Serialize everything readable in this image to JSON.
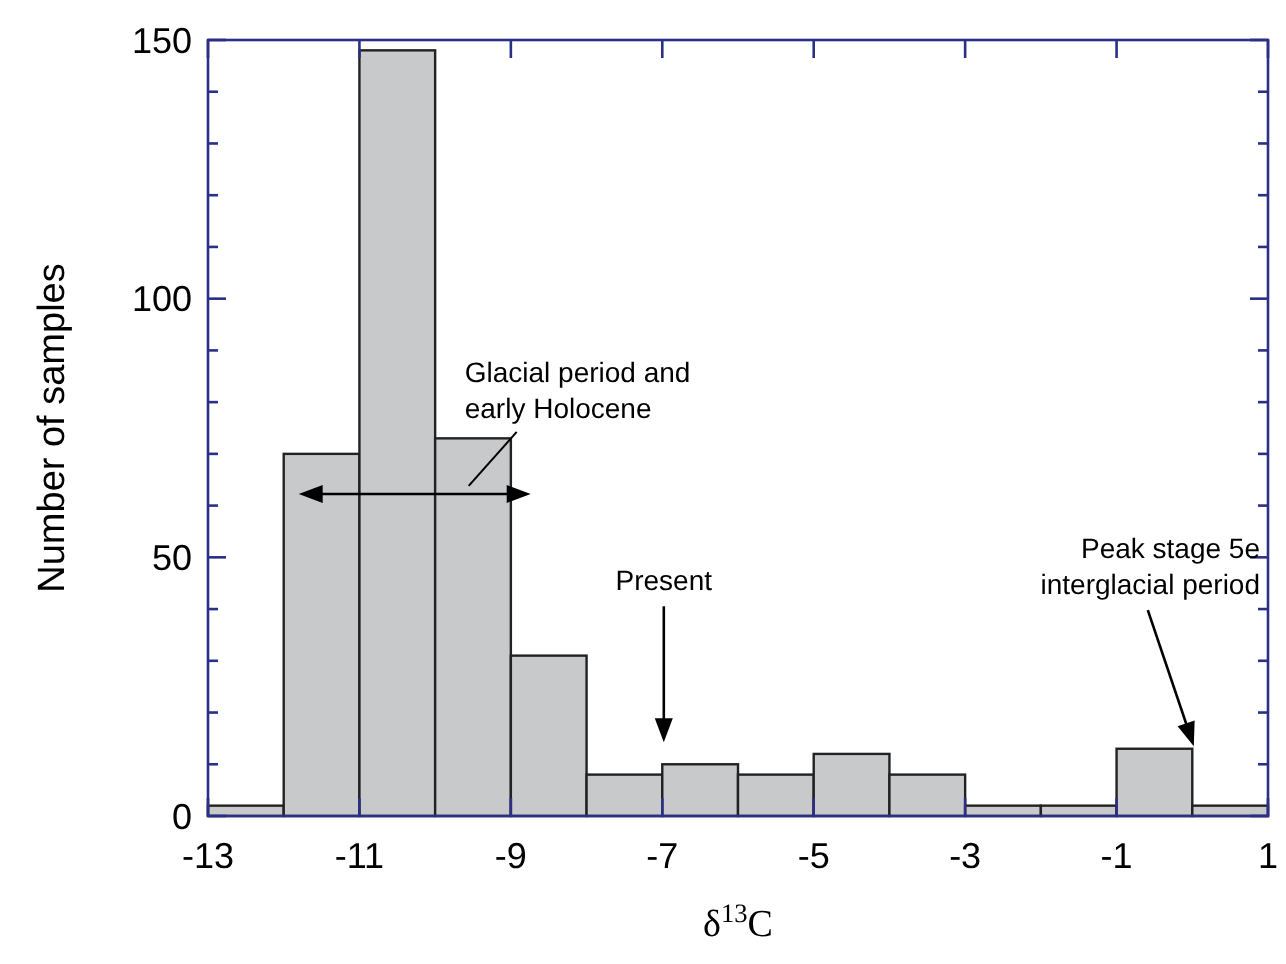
{
  "chart_data": {
    "type": "histogram",
    "xlabel": "δ$^{13}$C",
    "ylabel": "Number of samples",
    "bins": [
      -13,
      -12,
      -11,
      -10,
      -9,
      -8,
      -7,
      -6,
      -5,
      -4,
      -3,
      -2,
      -1,
      0,
      1
    ],
    "values": [
      2,
      70,
      148,
      73,
      31,
      8,
      10,
      8,
      12,
      8,
      2,
      2,
      13,
      2
    ],
    "color": "#c8c9cb",
    "xlim": [
      -13,
      1
    ],
    "xticks": [
      -13,
      -11,
      -9,
      -7,
      -5,
      -3,
      -1,
      1
    ],
    "ylim": [
      0,
      150
    ],
    "yticks": [
      0,
      {
        "value": 10,
        "label": null
      },
      {
        "value": 20,
        "label": null
      },
      {
        "value": 30,
        "label": null
      },
      {
        "value": 40,
        "label": null
      },
      50,
      {
        "value": 60,
        "label": null
      },
      {
        "value": 70,
        "label": null
      },
      {
        "value": 80,
        "label": null
      },
      {
        "value": 90,
        "label": null
      },
      100,
      {
        "value": 110,
        "label": null
      },
      {
        "value": 120,
        "label": null
      },
      {
        "value": 130,
        "label": null
      },
      {
        "value": 140,
        "label": null
      },
      150
    ],
    "grid": false,
    "annotations": [
      "Glacial period and early Holocene",
      "Present",
      "Peak stage 5e interglacial period"
    ]
  }
}
